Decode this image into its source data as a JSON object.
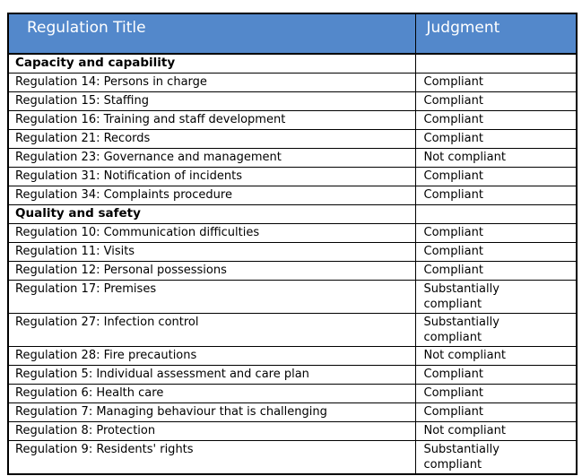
{
  "colors": {
    "header_bg": "#5388CB",
    "header_text": "#ffffff",
    "border": "#000000",
    "body_text": "#000000",
    "page_bg": "#ffffff"
  },
  "table": {
    "headers": [
      "Regulation Title",
      "Judgment"
    ],
    "rows": [
      {
        "type": "section",
        "title": "Capacity and capability",
        "judgment": ""
      },
      {
        "type": "row",
        "title": "Regulation 14: Persons in charge",
        "judgment": "Compliant"
      },
      {
        "type": "row",
        "title": "Regulation 15: Staffing",
        "judgment": "Compliant"
      },
      {
        "type": "row",
        "title": "Regulation 16: Training and staff development",
        "judgment": "Compliant"
      },
      {
        "type": "row",
        "title": "Regulation 21: Records",
        "judgment": "Compliant"
      },
      {
        "type": "row",
        "title": "Regulation 23: Governance and management",
        "judgment": "Not compliant"
      },
      {
        "type": "row",
        "title": "Regulation 31: Notification of incidents",
        "judgment": "Compliant"
      },
      {
        "type": "row",
        "title": "Regulation 34: Complaints procedure",
        "judgment": "Compliant"
      },
      {
        "type": "section",
        "title": "Quality and safety",
        "judgment": ""
      },
      {
        "type": "row",
        "title": "Regulation 10: Communication difficulties",
        "judgment": "Compliant"
      },
      {
        "type": "row",
        "title": "Regulation 11: Visits",
        "judgment": "Compliant"
      },
      {
        "type": "row",
        "title": "Regulation 12: Personal possessions",
        "judgment": "Compliant"
      },
      {
        "type": "row",
        "title": "Regulation 17: Premises",
        "judgment": "Substantially compliant"
      },
      {
        "type": "row",
        "title": "Regulation 27: Infection control",
        "judgment": "Substantially compliant"
      },
      {
        "type": "row",
        "title": "Regulation 28: Fire precautions",
        "judgment": "Not compliant"
      },
      {
        "type": "row",
        "title": "Regulation 5: Individual assessment and care plan",
        "judgment": "Compliant"
      },
      {
        "type": "row",
        "title": "Regulation 6: Health care",
        "judgment": "Compliant"
      },
      {
        "type": "row",
        "title": "Regulation 7: Managing behaviour that is challenging",
        "judgment": "Compliant"
      },
      {
        "type": "row",
        "title": "Regulation 8: Protection",
        "judgment": "Not compliant"
      },
      {
        "type": "row",
        "title": "Regulation 9: Residents' rights",
        "judgment": "Substantially compliant"
      }
    ]
  }
}
